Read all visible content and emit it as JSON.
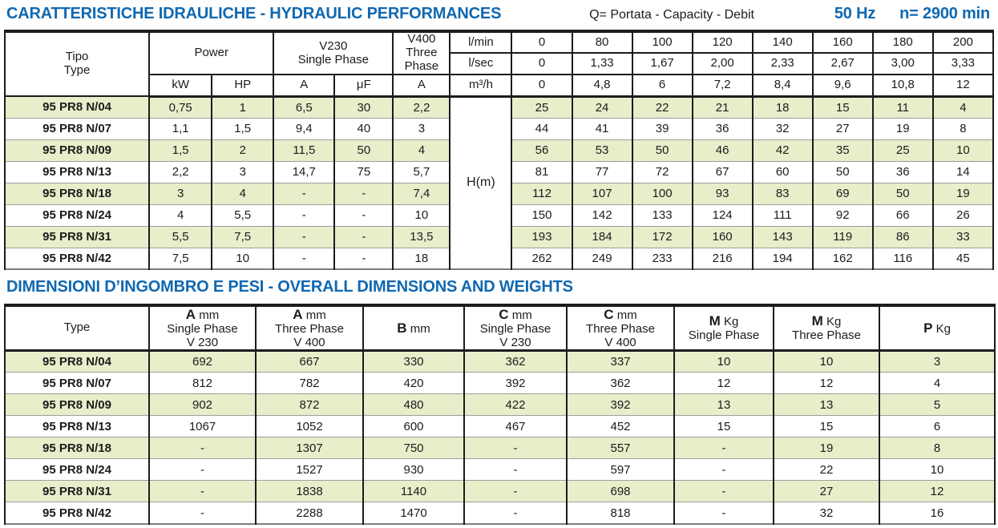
{
  "page": {
    "title1": "CARATTERISTICHE IDRAULICHE - HYDRAULIC PERFORMANCES",
    "subtitle": "Q= Portata - Capacity - Debit",
    "frequency": "50 Hz",
    "speed": "n= 2900 min",
    "title2": "DIMENSIONI D’INGOMBRO E PESI - OVERALL DIMENSIONS AND WEIGHTS"
  },
  "colors": {
    "accent_blue": "#1068b0",
    "row_green": "#e9edca",
    "border_black": "#1c1c1c",
    "row_line_gray": "#9d9d9d"
  },
  "table1": {
    "header": {
      "tipo": "Tipo",
      "type": "Type",
      "power": "Power",
      "kw": "kW",
      "hp": "HP",
      "v230_line1": "V230",
      "v230_line2": "Single Phase",
      "a230": "A",
      "uf": "μF",
      "v400_line1": "V400",
      "v400_line2": "Three",
      "v400_line3": "Phase",
      "a400": "A",
      "lmin": "l/min",
      "lsec": "l/sec",
      "m3h": "m³/h"
    },
    "flow_lmin": [
      "0",
      "80",
      "100",
      "120",
      "140",
      "160",
      "180",
      "200"
    ],
    "flow_lsec": [
      "0",
      "1,33",
      "1,67",
      "2,00",
      "2,33",
      "2,67",
      "3,00",
      "3,33"
    ],
    "flow_m3h": [
      "0",
      "4,8",
      "6",
      "7,2",
      "8,4",
      "9,6",
      "10,8",
      "12"
    ],
    "h_label": "H(m)",
    "rows": [
      {
        "type": "95 PR8 N/04",
        "kw": "0,75",
        "hp": "1",
        "a230": "6,5",
        "uf": "30",
        "a400": "2,2",
        "h": [
          "25",
          "24",
          "22",
          "21",
          "18",
          "15",
          "11",
          "4"
        ]
      },
      {
        "type": "95 PR8 N/07",
        "kw": "1,1",
        "hp": "1,5",
        "a230": "9,4",
        "uf": "40",
        "a400": "3",
        "h": [
          "44",
          "41",
          "39",
          "36",
          "32",
          "27",
          "19",
          "8"
        ]
      },
      {
        "type": "95 PR8 N/09",
        "kw": "1,5",
        "hp": "2",
        "a230": "11,5",
        "uf": "50",
        "a400": "4",
        "h": [
          "56",
          "53",
          "50",
          "46",
          "42",
          "35",
          "25",
          "10"
        ]
      },
      {
        "type": "95 PR8 N/13",
        "kw": "2,2",
        "hp": "3",
        "a230": "14,7",
        "uf": "75",
        "a400": "5,7",
        "h": [
          "81",
          "77",
          "72",
          "67",
          "60",
          "50",
          "36",
          "14"
        ]
      },
      {
        "type": "95 PR8 N/18",
        "kw": "3",
        "hp": "4",
        "a230": "-",
        "uf": "-",
        "a400": "7,4",
        "h": [
          "112",
          "107",
          "100",
          "93",
          "83",
          "69",
          "50",
          "19"
        ]
      },
      {
        "type": "95 PR8 N/24",
        "kw": "4",
        "hp": "5,5",
        "a230": "-",
        "uf": "-",
        "a400": "10",
        "h": [
          "150",
          "142",
          "133",
          "124",
          "111",
          "92",
          "66",
          "26"
        ]
      },
      {
        "type": "95 PR8 N/31",
        "kw": "5,5",
        "hp": "7,5",
        "a230": "-",
        "uf": "-",
        "a400": "13,5",
        "h": [
          "193",
          "184",
          "172",
          "160",
          "143",
          "119",
          "86",
          "33"
        ]
      },
      {
        "type": "95 PR8 N/42",
        "kw": "7,5",
        "hp": "10",
        "a230": "-",
        "uf": "-",
        "a400": "18",
        "h": [
          "262",
          "249",
          "233",
          "216",
          "194",
          "162",
          "116",
          "45"
        ]
      }
    ]
  },
  "table2": {
    "header": {
      "type": "Type",
      "cols": [
        {
          "letter": "A",
          "unit": "mm",
          "line2": "Single Phase",
          "line3": "V 230"
        },
        {
          "letter": "A",
          "unit": "mm",
          "line2": "Three Phase",
          "line3": "V 400"
        },
        {
          "letter": "B",
          "unit": "mm",
          "line2": "",
          "line3": ""
        },
        {
          "letter": "C",
          "unit": "mm",
          "line2": "Single Phase",
          "line3": "V 230"
        },
        {
          "letter": "C",
          "unit": "mm",
          "line2": "Three Phase",
          "line3": "V 400"
        },
        {
          "letter": "M",
          "unit": "Kg",
          "line2": "Single Phase",
          "line3": ""
        },
        {
          "letter": "M",
          "unit": "Kg",
          "line2": "Three Phase",
          "line3": ""
        },
        {
          "letter": "P",
          "unit": "Kg",
          "line2": "",
          "line3": ""
        }
      ]
    },
    "rows": [
      {
        "type": "95 PR8 N/04",
        "values": [
          "692",
          "667",
          "330",
          "362",
          "337",
          "10",
          "10",
          "3"
        ]
      },
      {
        "type": "95 PR8 N/07",
        "values": [
          "812",
          "782",
          "420",
          "392",
          "362",
          "12",
          "12",
          "4"
        ]
      },
      {
        "type": "95 PR8 N/09",
        "values": [
          "902",
          "872",
          "480",
          "422",
          "392",
          "13",
          "13",
          "5"
        ]
      },
      {
        "type": "95 PR8 N/13",
        "values": [
          "1067",
          "1052",
          "600",
          "467",
          "452",
          "15",
          "15",
          "6"
        ]
      },
      {
        "type": "95 PR8 N/18",
        "values": [
          "-",
          "1307",
          "750",
          "-",
          "557",
          "-",
          "19",
          "8"
        ]
      },
      {
        "type": "95 PR8 N/24",
        "values": [
          "-",
          "1527",
          "930",
          "-",
          "597",
          "-",
          "22",
          "10"
        ]
      },
      {
        "type": "95 PR8 N/31",
        "values": [
          "-",
          "1838",
          "1140",
          "-",
          "698",
          "-",
          "27",
          "12"
        ]
      },
      {
        "type": "95 PR8 N/42",
        "values": [
          "-",
          "2288",
          "1470",
          "-",
          "818",
          "-",
          "32",
          "16"
        ]
      }
    ]
  }
}
